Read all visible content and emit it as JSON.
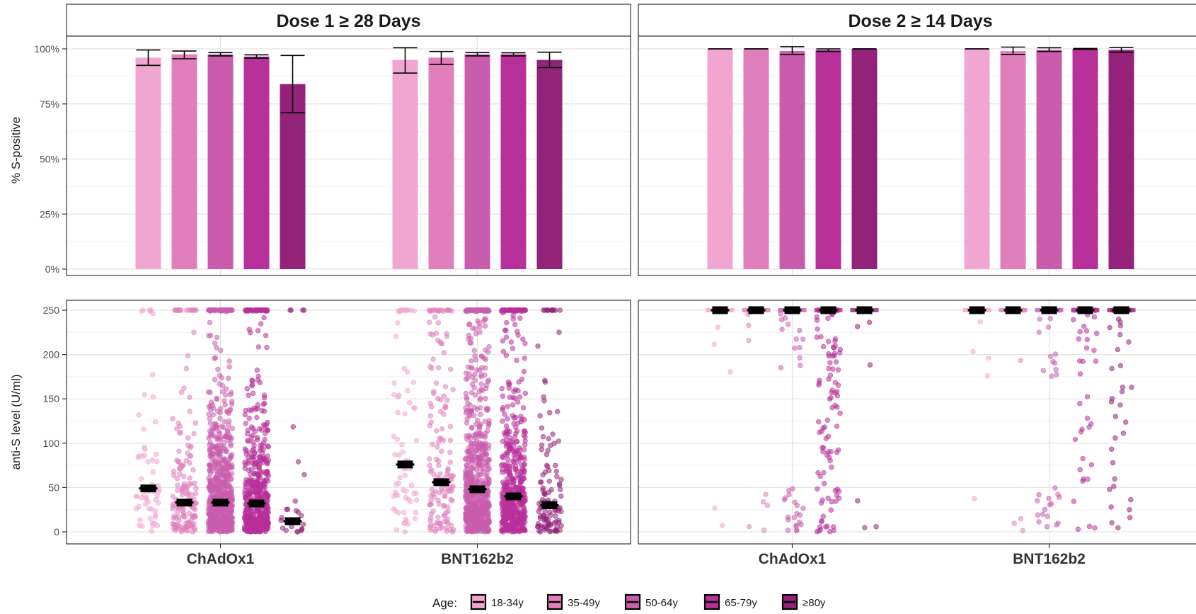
{
  "chart_data": {
    "type": "bar",
    "layout": "faceted 2x2 (rows: percent S-positive bars, anti-S level scatter; columns: dose facets)",
    "facets": [
      "Dose 1 ≥ 28 Days",
      "Dose 2 ≥ 14 Days"
    ],
    "categories": [
      "ChAdOx1",
      "BNT162b2"
    ],
    "groups": [
      "18-34y",
      "35-49y",
      "50-64y",
      "65-79y",
      "≥80y"
    ],
    "legend": {
      "title": "Age:",
      "placement": "bottom"
    },
    "colors": {
      "18-34y": "#F0A6D0",
      "35-49y": "#E07FBC",
      "50-64y": "#CA5CAE",
      "65-79y": "#B8309A",
      "≥80y": "#932378"
    },
    "grid": true,
    "top_panel": {
      "ylabel": "% S-positive",
      "ylim": [
        0,
        100
      ],
      "yticks": [
        0,
        25,
        50,
        75,
        100
      ],
      "ytick_labels": [
        "0%",
        "25%",
        "50%",
        "75%",
        "100%"
      ],
      "series": [
        {
          "facet": "Dose 1 ≥ 28 Days",
          "category": "ChAdOx1",
          "values": [
            96,
            97.5,
            97.5,
            96.5,
            84
          ],
          "lower": [
            92.5,
            95.5,
            96.8,
            95.8,
            71
          ],
          "upper": [
            99.5,
            99,
            98.3,
            97.3,
            97
          ]
        },
        {
          "facet": "Dose 1 ≥ 28 Days",
          "category": "BNT162b2",
          "values": [
            95,
            96,
            97.5,
            97.5,
            95
          ],
          "lower": [
            89,
            93,
            96.8,
            96.8,
            91.5
          ],
          "upper": [
            100.5,
            98.8,
            98.3,
            98.2,
            98.5
          ]
        },
        {
          "facet": "Dose 2 ≥ 14 Days",
          "category": "ChAdOx1",
          "values": [
            100,
            100,
            99,
            99.5,
            100
          ],
          "lower": [
            100,
            100,
            97.5,
            98.8,
            100
          ],
          "upper": [
            100,
            100,
            101,
            100,
            100
          ]
        },
        {
          "facet": "Dose 2 ≥ 14 Days",
          "category": "BNT162b2",
          "values": [
            100,
            99,
            99.5,
            100,
            99.5
          ],
          "lower": [
            100,
            97.5,
            98.8,
            99.8,
            98.5
          ],
          "upper": [
            100,
            100.8,
            100.5,
            100.2,
            100.6
          ]
        }
      ]
    },
    "bottom_panel": {
      "type": "scatter",
      "ylabel": "anti-S level (U/ml)",
      "ylim": [
        -12,
        262
      ],
      "yticks": [
        0,
        50,
        100,
        150,
        200,
        250
      ],
      "ytick_labels": [
        "0",
        "50",
        "100",
        "150",
        "200",
        "250"
      ],
      "medians": [
        {
          "facet": "Dose 1 ≥ 28 Days",
          "category": "ChAdOx1",
          "values": [
            49,
            33,
            33,
            32,
            12
          ]
        },
        {
          "facet": "Dose 1 ≥ 28 Days",
          "category": "BNT162b2",
          "values": [
            76,
            56,
            48,
            40,
            30
          ]
        },
        {
          "facet": "Dose 2 ≥ 14 Days",
          "category": "ChAdOx1",
          "values": [
            250,
            250,
            250,
            250,
            250
          ]
        },
        {
          "facet": "Dose 2 ≥ 14 Days",
          "category": "BNT162b2",
          "values": [
            250,
            250,
            250,
            250,
            250
          ]
        }
      ]
    }
  }
}
